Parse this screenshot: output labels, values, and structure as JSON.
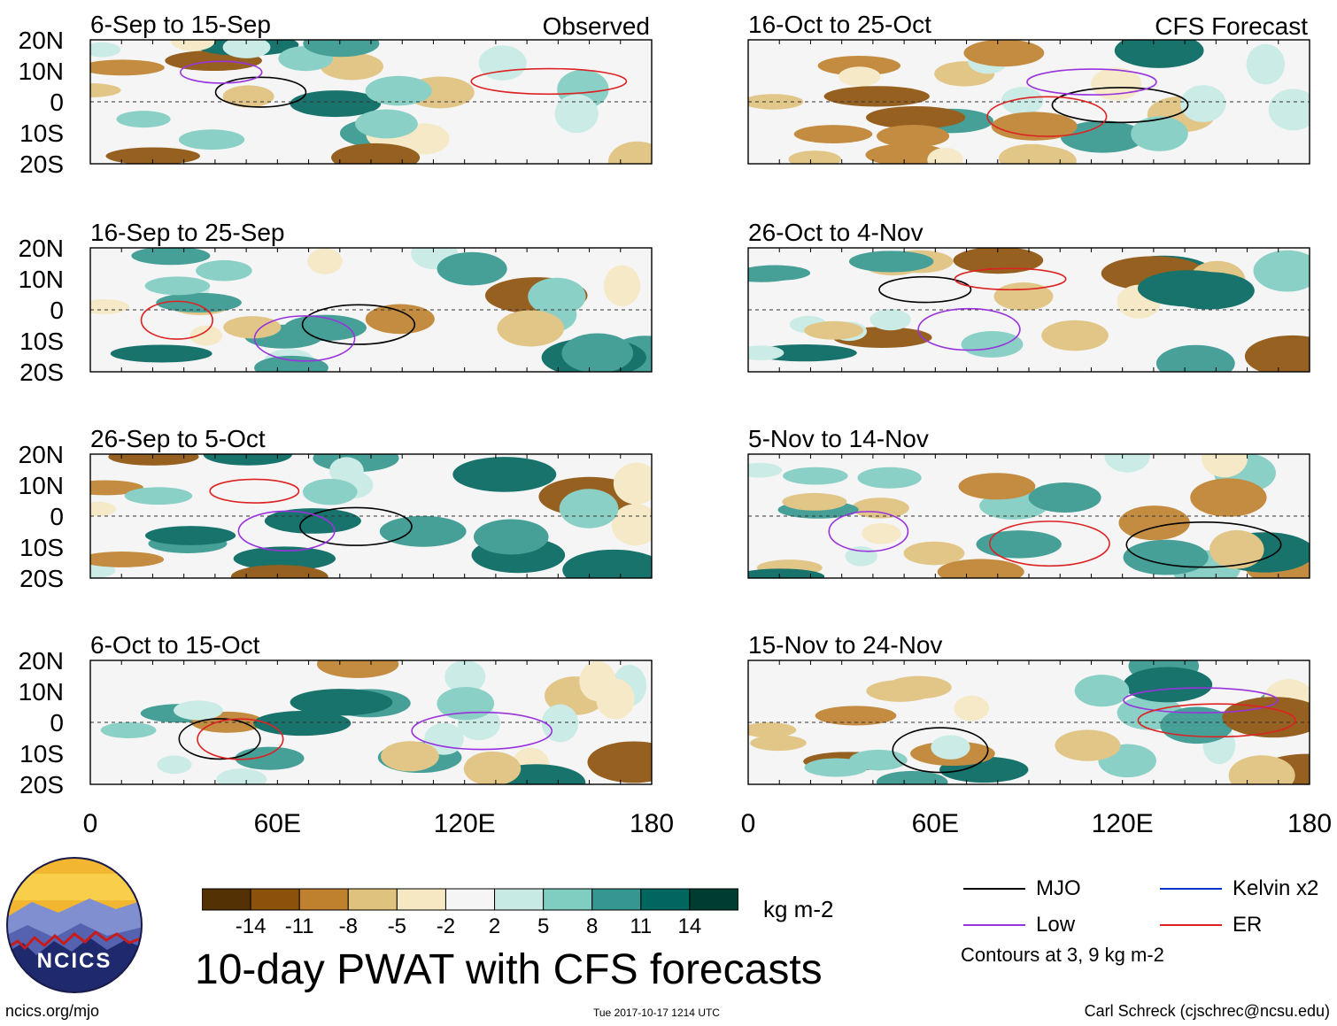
{
  "title": "10-day PWAT with CFS forecasts",
  "footer": {
    "url": "ncics.org/mjo",
    "timestamp": "Tue 2017-10-17 1214 UTC",
    "author": "Carl Schreck (cjschrec@ncsu.edu)"
  },
  "logo": {
    "text": "NCICS"
  },
  "colorbar": {
    "units": "kg m-2",
    "colors": [
      "#543005",
      "#8c510a",
      "#bf812d",
      "#dfc27d",
      "#f6e8c3",
      "#f5f5f5",
      "#c7eae5",
      "#80cdc1",
      "#35978f",
      "#01665e",
      "#003c30"
    ],
    "ticks": [
      "-14",
      "-11",
      "-8",
      "-5",
      "-2",
      "2",
      "5",
      "8",
      "11",
      "14"
    ]
  },
  "legend": {
    "items": [
      {
        "label": "MJO",
        "color": "#000000"
      },
      {
        "label": "Kelvin x2",
        "color": "#0033cc"
      },
      {
        "label": "Low",
        "color": "#9933dd"
      },
      {
        "label": "ER",
        "color": "#dd2222"
      }
    ],
    "note": "Contours at 3, 9 kg m-2"
  },
  "chart_data": {
    "type": "heatmap",
    "variable": "10-day precipitable water (PWAT) anomaly",
    "x_axis": {
      "ticks": [
        "0",
        "60E",
        "120E",
        "180"
      ],
      "range": [
        0,
        180
      ]
    },
    "y_axis": {
      "ticks": [
        "20N",
        "10N",
        "0",
        "10S",
        "20S"
      ],
      "range": [
        -20,
        20
      ]
    },
    "columns": [
      {
        "header": "Observed",
        "panels": [
          {
            "period": "6-Sep to 15-Sep"
          },
          {
            "period": "16-Sep to 25-Sep"
          },
          {
            "period": "26-Sep to 5-Oct"
          },
          {
            "period": "6-Oct to 15-Oct"
          }
        ]
      },
      {
        "header": "CFS Forecast",
        "panels": [
          {
            "period": "16-Oct to 25-Oct"
          },
          {
            "period": "26-Oct to 4-Nov"
          },
          {
            "period": "5-Nov to 14-Nov"
          },
          {
            "period": "15-Nov to 24-Nov"
          }
        ]
      }
    ]
  }
}
